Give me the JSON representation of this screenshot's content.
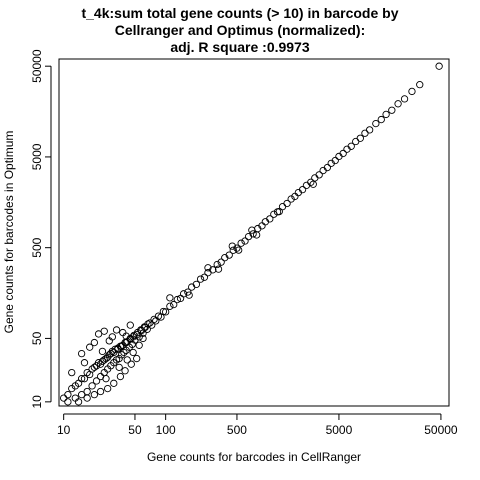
{
  "chart_data": {
    "type": "scatter",
    "title_lines": [
      "t_4k:sum total gene counts (> 10) in barcode by",
      "Cellranger and Optimus (normalized):",
      "adj. R square :0.9973"
    ],
    "xlabel": "Gene counts for barcodes in CellRanger",
    "ylabel": "Gene counts for barcodes in Optimum",
    "x_scale": "log",
    "y_scale": "log",
    "xlim": [
      9,
      60000
    ],
    "ylim": [
      9,
      60000
    ],
    "x_ticks": [
      {
        "value": 10,
        "label": "10"
      },
      {
        "value": 50,
        "label": "50"
      },
      {
        "value": 100,
        "label": "100"
      },
      {
        "value": 500,
        "label": "500"
      },
      {
        "value": 5000,
        "label": "5000"
      },
      {
        "value": 50000,
        "label": "50000"
      }
    ],
    "y_ticks": [
      {
        "value": 10,
        "label": "10"
      },
      {
        "value": 50,
        "label": "50"
      },
      {
        "value": 500,
        "label": "500"
      },
      {
        "value": 5000,
        "label": "5000"
      },
      {
        "value": 50000,
        "label": "50000"
      }
    ],
    "grid": false,
    "marker": "open-circle",
    "points": [
      [
        10,
        11
      ],
      [
        11,
        10
      ],
      [
        12,
        14
      ],
      [
        13,
        11
      ],
      [
        14,
        16
      ],
      [
        15,
        12
      ],
      [
        16,
        18
      ],
      [
        17,
        13
      ],
      [
        18,
        20
      ],
      [
        19,
        15
      ],
      [
        20,
        24
      ],
      [
        21,
        17
      ],
      [
        22,
        27
      ],
      [
        23,
        19
      ],
      [
        24,
        28
      ],
      [
        25,
        21
      ],
      [
        26,
        30
      ],
      [
        27,
        23
      ],
      [
        28,
        33
      ],
      [
        29,
        25
      ],
      [
        30,
        36
      ],
      [
        31,
        27
      ],
      [
        32,
        38
      ],
      [
        33,
        29
      ],
      [
        34,
        39
      ],
      [
        35,
        30
      ],
      [
        36,
        41
      ],
      [
        37,
        33
      ],
      [
        38,
        42
      ],
      [
        39,
        35
      ],
      [
        40,
        45
      ],
      [
        41,
        37
      ],
      [
        42,
        46
      ],
      [
        44,
        40
      ],
      [
        45,
        50
      ],
      [
        47,
        43
      ],
      [
        48,
        52
      ],
      [
        50,
        48
      ],
      [
        52,
        55
      ],
      [
        55,
        52
      ],
      [
        58,
        61
      ],
      [
        60,
        57
      ],
      [
        63,
        66
      ],
      [
        66,
        63
      ],
      [
        70,
        74
      ],
      [
        73,
        70
      ],
      [
        77,
        81
      ],
      [
        80,
        78
      ],
      [
        85,
        88
      ],
      [
        90,
        86
      ],
      [
        95,
        99
      ],
      [
        100,
        98
      ],
      [
        110,
        113
      ],
      [
        120,
        118
      ],
      [
        130,
        134
      ],
      [
        140,
        138
      ],
      [
        150,
        155
      ],
      [
        165,
        162
      ],
      [
        180,
        184
      ],
      [
        200,
        197
      ],
      [
        220,
        225
      ],
      [
        240,
        236
      ],
      [
        260,
        265
      ],
      [
        290,
        285
      ],
      [
        320,
        326
      ],
      [
        350,
        346
      ],
      [
        380,
        388
      ],
      [
        420,
        414
      ],
      [
        460,
        468
      ],
      [
        500,
        494
      ],
      [
        550,
        560
      ],
      [
        600,
        592
      ],
      [
        650,
        662
      ],
      [
        720,
        710
      ],
      [
        800,
        812
      ],
      [
        880,
        870
      ],
      [
        950,
        965
      ],
      [
        1050,
        1038
      ],
      [
        1150,
        1168
      ],
      [
        1250,
        1240
      ],
      [
        1400,
        1415
      ],
      [
        1550,
        1535
      ],
      [
        1700,
        1718
      ],
      [
        1850,
        1835
      ],
      [
        2000,
        2022
      ],
      [
        2200,
        2180
      ],
      [
        2400,
        2428
      ],
      [
        2650,
        2630
      ],
      [
        2900,
        2935
      ],
      [
        3200,
        3172
      ],
      [
        3500,
        3540
      ],
      [
        3850,
        3820
      ],
      [
        4200,
        4248
      ],
      [
        4600,
        4565
      ],
      [
        5000,
        5060
      ],
      [
        5500,
        5460
      ],
      [
        6000,
        6080
      ],
      [
        6600,
        6550
      ],
      [
        7300,
        7390
      ],
      [
        8100,
        8030
      ],
      [
        9000,
        9120
      ],
      [
        10000,
        9930
      ],
      [
        11500,
        11650
      ],
      [
        13000,
        12900
      ],
      [
        14500,
        14700
      ],
      [
        16500,
        16350
      ],
      [
        19000,
        19250
      ],
      [
        22000,
        21800
      ],
      [
        26000,
        26350
      ],
      [
        31000,
        31300
      ],
      [
        48000,
        50000
      ],
      [
        25,
        60
      ],
      [
        22,
        56
      ],
      [
        28,
        47
      ],
      [
        18,
        40
      ],
      [
        15,
        34
      ],
      [
        33,
        62
      ],
      [
        30,
        52
      ],
      [
        20,
        45
      ],
      [
        38,
        58
      ],
      [
        45,
        70
      ],
      [
        41,
        53
      ],
      [
        24,
        36
      ],
      [
        16,
        27
      ],
      [
        12,
        21
      ],
      [
        26,
        18
      ],
      [
        35,
        24
      ],
      [
        42,
        29
      ],
      [
        48,
        35
      ],
      [
        55,
        42
      ],
      [
        60,
        50
      ],
      [
        14,
        10
      ],
      [
        17,
        11
      ],
      [
        20,
        12
      ],
      [
        23,
        13
      ],
      [
        27,
        14
      ],
      [
        31,
        16
      ],
      [
        36,
        19
      ],
      [
        40,
        22
      ],
      [
        46,
        26
      ],
      [
        52,
        30
      ],
      [
        11,
        12
      ],
      [
        13,
        15
      ],
      [
        15,
        18
      ],
      [
        17,
        21
      ],
      [
        19,
        23
      ],
      [
        21,
        25
      ],
      [
        23,
        26
      ],
      [
        25,
        29
      ],
      [
        27,
        31
      ],
      [
        29,
        34
      ],
      [
        31,
        35
      ],
      [
        34,
        38
      ],
      [
        37,
        41
      ],
      [
        41,
        45
      ],
      [
        45,
        49
      ],
      [
        49,
        54
      ],
      [
        53,
        58
      ],
      [
        57,
        62
      ],
      [
        62,
        67
      ],
      [
        67,
        72
      ],
      [
        110,
        140
      ],
      [
        170,
        150
      ],
      [
        260,
        300
      ],
      [
        330,
        290
      ],
      [
        450,
        520
      ],
      [
        520,
        470
      ],
      [
        700,
        780
      ],
      [
        780,
        690
      ],
      [
        1300,
        1250
      ],
      [
        2800,
        2500
      ]
    ]
  }
}
